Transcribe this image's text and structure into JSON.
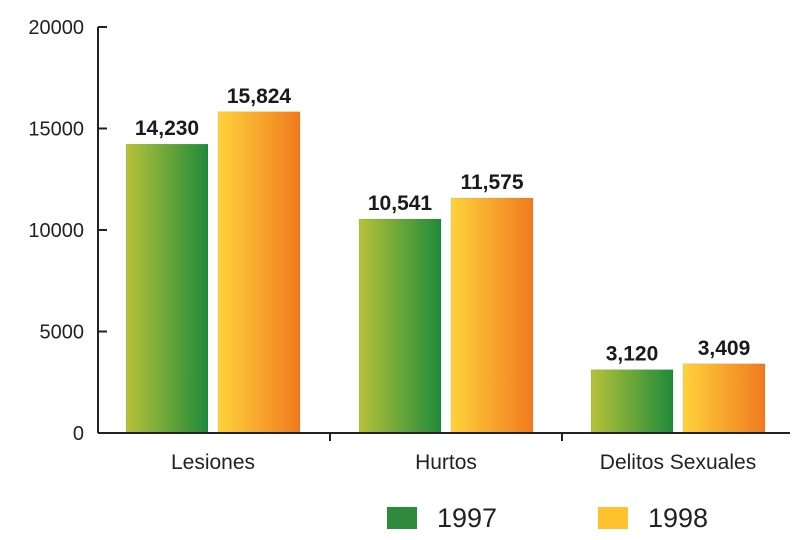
{
  "chart_data": {
    "type": "bar",
    "title": "",
    "xlabel": "",
    "ylabel": "",
    "categories": [
      "Lesiones",
      "Hurtos",
      "Delitos Sexuales"
    ],
    "series": [
      {
        "name": "1997",
        "values": [
          14230,
          10541,
          3120
        ],
        "value_labels": [
          "14,230",
          "10,541",
          "3,120"
        ],
        "color_dark": "#1f8a3a",
        "color_light": "#b7c23a"
      },
      {
        "name": "1998",
        "values": [
          15824,
          11575,
          3409
        ],
        "value_labels": [
          "15,824",
          "11,575",
          "3,409"
        ],
        "color_dark": "#f07a1e",
        "color_light": "#ffd23c"
      }
    ],
    "ylim": [
      0,
      20000
    ],
    "yticks": [
      0,
      5000,
      10000,
      15000,
      20000
    ],
    "ytick_labels": [
      "0",
      "5000",
      "10000",
      "15000",
      "20000"
    ],
    "grid": false,
    "legend": {
      "position": "bottom-right",
      "entries": [
        {
          "label": "1997",
          "color": "#2e8b3e"
        },
        {
          "label": "1998",
          "color": "#ffc22e"
        }
      ]
    },
    "axis_color": "#222222"
  }
}
